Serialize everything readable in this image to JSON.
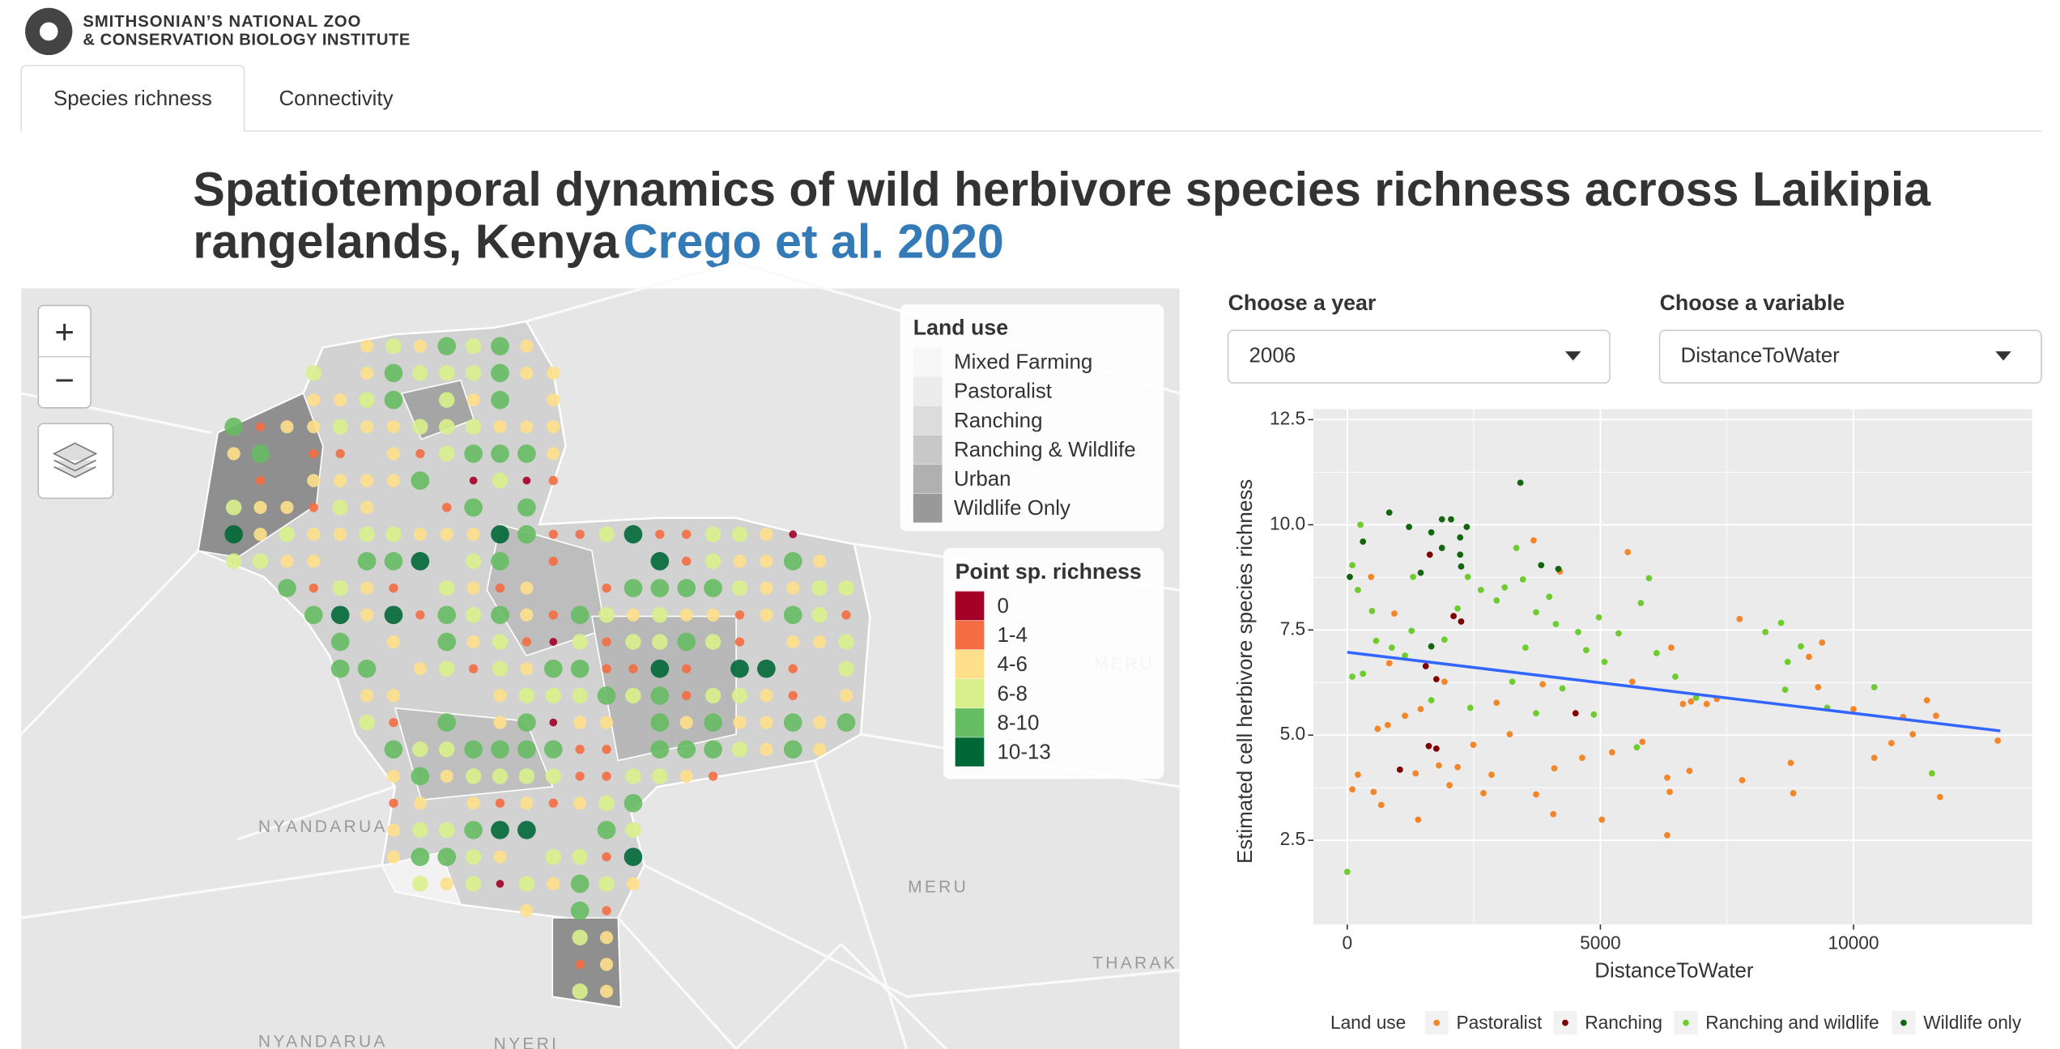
{
  "header": {
    "logo_line1": "SMITHSONIAN’S NATIONAL ZOO",
    "logo_line2": "& CONSERVATION BIOLOGY INSTITUTE"
  },
  "tabs": [
    "Species richness",
    "Connectivity"
  ],
  "page_title": {
    "line1": "Spatiotemporal dynamics of wild herbivore species richness across Laikipia",
    "line2": "rangelands, Kenya",
    "link": "Crego et al. 2020"
  },
  "controls": {
    "year_label": "Choose a year",
    "year_value": "2006",
    "variable_label": "Choose a variable",
    "variable_value": "DistanceToWater"
  },
  "map": {
    "zoom_in": "+",
    "zoom_out": "−",
    "place_labels": [
      "NYANDARUA",
      "MERU",
      "MERU",
      "THARAK",
      "NYANDARUA",
      "NYERI"
    ],
    "land_use_legend": {
      "title": "Land use",
      "items": [
        {
          "label": "Mixed Farming",
          "color": "#f7f7f7"
        },
        {
          "label": "Pastoralist",
          "color": "#ececec"
        },
        {
          "label": "Ranching",
          "color": "#dcdcdc"
        },
        {
          "label": "Ranching & Wildlife",
          "color": "#c8c8c8"
        },
        {
          "label": "Urban",
          "color": "#b0b0b0"
        },
        {
          "label": "Wildlife Only",
          "color": "#999999"
        }
      ]
    },
    "richness_legend": {
      "title": "Point sp. richness",
      "items": [
        {
          "label": "0",
          "color": "#a50026"
        },
        {
          "label": "1-4",
          "color": "#f46d43"
        },
        {
          "label": "4-6",
          "color": "#fee08b"
        },
        {
          "label": "6-8",
          "color": "#d9ef8b"
        },
        {
          "label": "8-10",
          "color": "#66bd63"
        },
        {
          "label": "10-13",
          "color": "#006837"
        }
      ]
    }
  },
  "chart_data": {
    "type": "scatter",
    "x_label": "DistanceToWater",
    "y_label": "Estimated cell herbivore species richness",
    "legend_title": "Land use",
    "legend_position": "bottom",
    "grid": true,
    "xlim": [
      -670,
      13530
    ],
    "ylim": [
      0.5,
      12.75
    ],
    "xticks": [
      0,
      5000,
      10000
    ],
    "yticks": [
      2.5,
      {
        "value": 5,
        "label": "5.0"
      },
      7.5,
      {
        "value": 10,
        "label": "10.0"
      },
      12.5
    ],
    "series": [
      {
        "name": "Pastoralist",
        "color": "#f4862a",
        "x": [
          100,
          210,
          520,
          670,
          470,
          600,
          800,
          1140,
          1450,
          1350,
          1400,
          1810,
          2020,
          2180,
          2490,
          2850,
          2690,
          3210,
          3730,
          4070,
          4090,
          4640,
          5030,
          5230,
          5540,
          5830,
          6320,
          6370,
          6320,
          6400,
          6760,
          6630,
          7300,
          7750,
          7800,
          8760,
          8810,
          9120,
          9300,
          9380,
          10000,
          10410,
          10750,
          10980,
          11170,
          11450,
          11630,
          11710,
          12850,
          3680,
          4200,
          930,
          1920,
          2950,
          3860,
          5630,
          6790,
          7100,
          830
        ],
        "values": [
          3.71,
          4.06,
          3.65,
          3.34,
          8.76,
          5.15,
          5.24,
          5.46,
          5.62,
          4.09,
          2.99,
          4.28,
          3.81,
          4.24,
          4.77,
          4.06,
          3.62,
          5.02,
          3.59,
          3.12,
          4.21,
          4.46,
          2.99,
          4.59,
          9.35,
          4.84,
          3.99,
          3.65,
          2.62,
          7.08,
          4.15,
          5.74,
          5.86,
          7.76,
          3.93,
          4.34,
          3.62,
          6.86,
          6.14,
          7.2,
          5.62,
          4.46,
          4.81,
          5.43,
          5.02,
          5.83,
          5.46,
          3.53,
          4.87,
          9.63,
          8.89,
          7.89,
          6.27,
          5.77,
          6.21,
          6.27,
          5.8,
          5.74,
          6.71
        ]
      },
      {
        "name": "Ranching",
        "color": "#7f0000",
        "x": [
          2100,
          1550,
          1760,
          2250,
          4510,
          1610,
          1760,
          1040,
          1630
        ],
        "values": [
          7.83,
          6.64,
          6.33,
          7.7,
          5.52,
          4.74,
          4.68,
          4.18,
          9.29
        ]
      },
      {
        "name": "Ranching and wildlife",
        "color": "#6fcc2f",
        "x": [
          0,
          100,
          260,
          210,
          490,
          570,
          100,
          310,
          880,
          1140,
          1270,
          1920,
          2180,
          2380,
          2640,
          2950,
          3110,
          3340,
          3470,
          3730,
          3990,
          4120,
          3520,
          3260,
          3730,
          4250,
          4560,
          4720,
          4970,
          5080,
          4870,
          5360,
          5720,
          5800,
          5960,
          6110,
          6480,
          6890,
          8260,
          8570,
          8700,
          8650,
          8960,
          9480,
          10410,
          11550,
          1300,
          1660,
          2430
        ],
        "values": [
          1.75,
          9.04,
          10.0,
          8.45,
          7.95,
          7.24,
          6.39,
          6.46,
          7.08,
          6.89,
          7.48,
          7.27,
          8.01,
          8.76,
          8.45,
          8.2,
          8.51,
          9.45,
          8.7,
          7.92,
          8.29,
          7.64,
          7.08,
          6.27,
          5.52,
          6.11,
          7.45,
          7.02,
          7.8,
          6.74,
          5.49,
          7.42,
          4.71,
          8.14,
          8.73,
          6.95,
          6.39,
          5.89,
          7.45,
          7.67,
          6.74,
          6.08,
          7.11,
          5.65,
          6.14,
          4.09,
          8.76,
          5.83,
          5.65
        ]
      },
      {
        "name": "Wildlife only",
        "color": "#13650f",
        "x": [
          50,
          310,
          830,
          1220,
          1660,
          1870,
          2050,
          2230,
          2360,
          2250,
          1660,
          1870,
          3420,
          3830,
          4170,
          2230,
          1450
        ],
        "values": [
          8.76,
          9.6,
          10.29,
          9.95,
          7.11,
          10.13,
          10.13,
          9.7,
          9.95,
          9.01,
          9.82,
          9.45,
          11.0,
          9.04,
          8.95,
          9.29,
          8.86
        ]
      }
    ],
    "trend_line": {
      "color": "#3366ff",
      "x": [
        0,
        12900
      ],
      "values": [
        6.97,
        5.1
      ]
    }
  }
}
